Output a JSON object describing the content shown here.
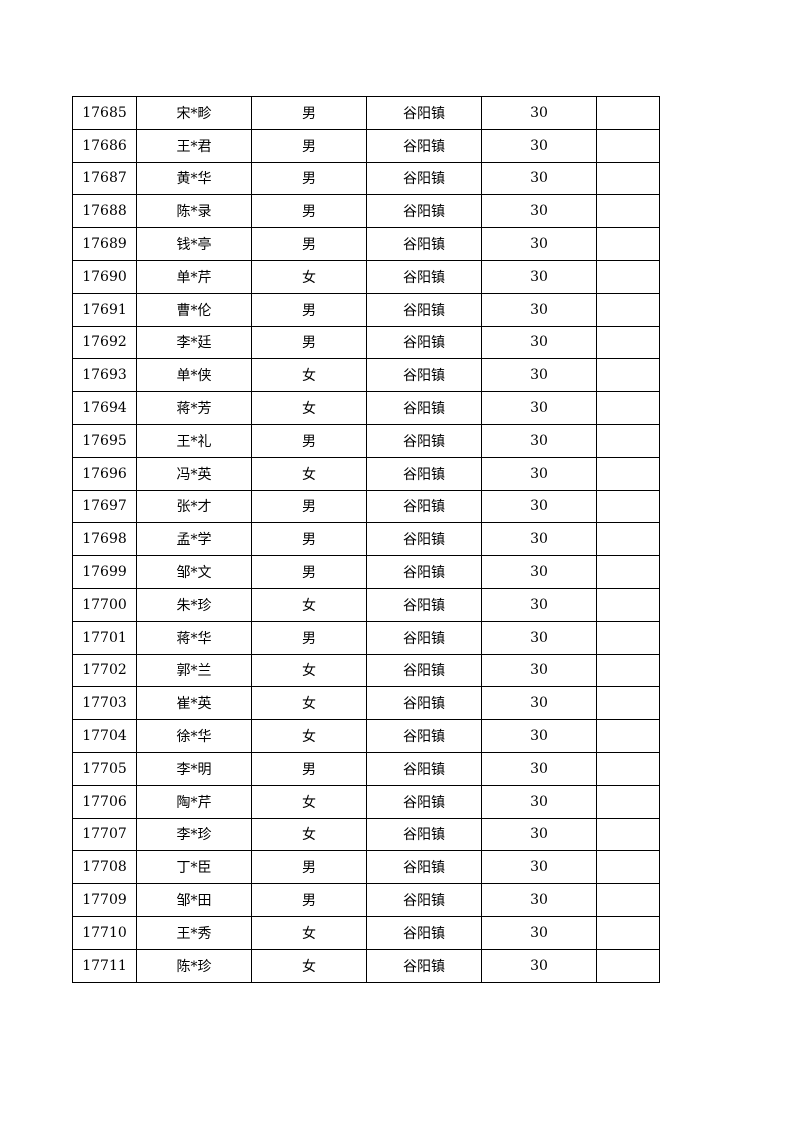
{
  "table": {
    "rows": [
      {
        "id": "17685",
        "name": "宋*畛",
        "gender": "男",
        "town": "谷阳镇",
        "amount": "30",
        "note": ""
      },
      {
        "id": "17686",
        "name": "王*君",
        "gender": "男",
        "town": "谷阳镇",
        "amount": "30",
        "note": ""
      },
      {
        "id": "17687",
        "name": "黄*华",
        "gender": "男",
        "town": "谷阳镇",
        "amount": "30",
        "note": ""
      },
      {
        "id": "17688",
        "name": "陈*录",
        "gender": "男",
        "town": "谷阳镇",
        "amount": "30",
        "note": ""
      },
      {
        "id": "17689",
        "name": "钱*亭",
        "gender": "男",
        "town": "谷阳镇",
        "amount": "30",
        "note": ""
      },
      {
        "id": "17690",
        "name": "单*芹",
        "gender": "女",
        "town": "谷阳镇",
        "amount": "30",
        "note": ""
      },
      {
        "id": "17691",
        "name": "曹*伦",
        "gender": "男",
        "town": "谷阳镇",
        "amount": "30",
        "note": ""
      },
      {
        "id": "17692",
        "name": "李*廷",
        "gender": "男",
        "town": "谷阳镇",
        "amount": "30",
        "note": ""
      },
      {
        "id": "17693",
        "name": "单*侠",
        "gender": "女",
        "town": "谷阳镇",
        "amount": "30",
        "note": ""
      },
      {
        "id": "17694",
        "name": "蒋*芳",
        "gender": "女",
        "town": "谷阳镇",
        "amount": "30",
        "note": ""
      },
      {
        "id": "17695",
        "name": "王*礼",
        "gender": "男",
        "town": "谷阳镇",
        "amount": "30",
        "note": ""
      },
      {
        "id": "17696",
        "name": "冯*英",
        "gender": "女",
        "town": "谷阳镇",
        "amount": "30",
        "note": ""
      },
      {
        "id": "17697",
        "name": "张*才",
        "gender": "男",
        "town": "谷阳镇",
        "amount": "30",
        "note": ""
      },
      {
        "id": "17698",
        "name": "孟*学",
        "gender": "男",
        "town": "谷阳镇",
        "amount": "30",
        "note": ""
      },
      {
        "id": "17699",
        "name": "邹*文",
        "gender": "男",
        "town": "谷阳镇",
        "amount": "30",
        "note": ""
      },
      {
        "id": "17700",
        "name": "朱*珍",
        "gender": "女",
        "town": "谷阳镇",
        "amount": "30",
        "note": ""
      },
      {
        "id": "17701",
        "name": "蒋*华",
        "gender": "男",
        "town": "谷阳镇",
        "amount": "30",
        "note": ""
      },
      {
        "id": "17702",
        "name": "郭*兰",
        "gender": "女",
        "town": "谷阳镇",
        "amount": "30",
        "note": ""
      },
      {
        "id": "17703",
        "name": "崔*英",
        "gender": "女",
        "town": "谷阳镇",
        "amount": "30",
        "note": ""
      },
      {
        "id": "17704",
        "name": "徐*华",
        "gender": "女",
        "town": "谷阳镇",
        "amount": "30",
        "note": ""
      },
      {
        "id": "17705",
        "name": "李*明",
        "gender": "男",
        "town": "谷阳镇",
        "amount": "30",
        "note": ""
      },
      {
        "id": "17706",
        "name": "陶*芹",
        "gender": "女",
        "town": "谷阳镇",
        "amount": "30",
        "note": ""
      },
      {
        "id": "17707",
        "name": "李*珍",
        "gender": "女",
        "town": "谷阳镇",
        "amount": "30",
        "note": ""
      },
      {
        "id": "17708",
        "name": "丁*臣",
        "gender": "男",
        "town": "谷阳镇",
        "amount": "30",
        "note": ""
      },
      {
        "id": "17709",
        "name": "邹*田",
        "gender": "男",
        "town": "谷阳镇",
        "amount": "30",
        "note": ""
      },
      {
        "id": "17710",
        "name": "王*秀",
        "gender": "女",
        "town": "谷阳镇",
        "amount": "30",
        "note": ""
      },
      {
        "id": "17711",
        "name": "陈*珍",
        "gender": "女",
        "town": "谷阳镇",
        "amount": "30",
        "note": ""
      }
    ]
  }
}
